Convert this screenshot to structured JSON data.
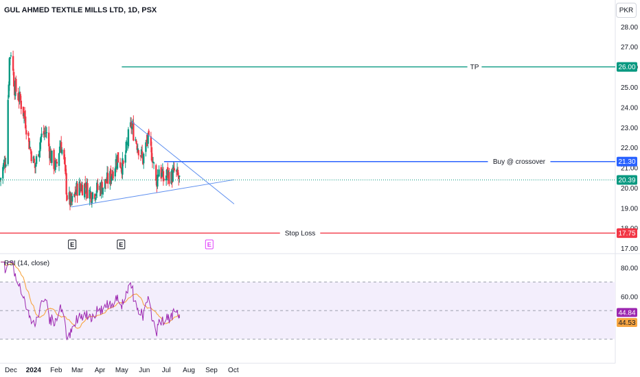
{
  "header": {
    "title": "GUL AHMED TEXTILE MILLS LTD, 1D, PSX",
    "currency": "PKR"
  },
  "colors": {
    "up": "#089981",
    "down": "#f23645",
    "tp_line": "#089981",
    "buy_line": "#2962ff",
    "stop_line": "#f23645",
    "trend_line": "#5b8def",
    "rsi": "#9c27b0",
    "rsi_ma": "#f7a541",
    "rsi_band": "#f3eefc",
    "earnings_future": "#e040fb",
    "last_price": "#089981"
  },
  "chart_data": {
    "type": "candlestick",
    "symbol": "GUL AHMED TEXTILE MILLS LTD",
    "interval": "1D",
    "exchange": "PSX",
    "currency": "PKR",
    "price_axis": {
      "ylim": [
        16.8,
        28.3
      ],
      "ticks": [
        "17.00",
        "18.00",
        "19.00",
        "20.00",
        "21.00",
        "22.00",
        "23.00",
        "24.00",
        "25.00",
        "26.00",
        "27.00",
        "28.00"
      ]
    },
    "time_axis": {
      "ticks": [
        "Dec",
        "2024",
        "Feb",
        "Mar",
        "Apr",
        "May",
        "Jun",
        "Jul",
        "Aug",
        "Sep",
        "Oct"
      ]
    },
    "price_path": [
      {
        "date": "2023-11-16",
        "close": 20.4
      },
      {
        "date": "2023-11-24",
        "close": 21.5
      },
      {
        "date": "2023-11-29",
        "close": 26.4
      },
      {
        "date": "2023-12-01",
        "close": 26.8
      },
      {
        "date": "2023-12-06",
        "close": 25.0
      },
      {
        "date": "2023-12-14",
        "close": 24.3
      },
      {
        "date": "2023-12-20",
        "close": 23.5
      },
      {
        "date": "2023-12-27",
        "close": 22.0
      },
      {
        "date": "2024-01-03",
        "close": 21.0
      },
      {
        "date": "2024-01-11",
        "close": 22.5
      },
      {
        "date": "2024-01-18",
        "close": 22.8
      },
      {
        "date": "2024-01-25",
        "close": 21.5
      },
      {
        "date": "2024-02-01",
        "close": 21.0
      },
      {
        "date": "2024-02-07",
        "close": 22.3
      },
      {
        "date": "2024-02-12",
        "close": 21.2
      },
      {
        "date": "2024-02-16",
        "close": 19.6
      },
      {
        "date": "2024-02-22",
        "close": 19.2
      },
      {
        "date": "2024-03-01",
        "close": 20.0
      },
      {
        "date": "2024-03-11",
        "close": 20.1
      },
      {
        "date": "2024-03-20",
        "close": 19.7
      },
      {
        "date": "2024-03-28",
        "close": 19.9
      },
      {
        "date": "2024-04-05",
        "close": 20.1
      },
      {
        "date": "2024-04-15",
        "close": 20.5
      },
      {
        "date": "2024-04-25",
        "close": 21.5
      },
      {
        "date": "2024-05-03",
        "close": 21.0
      },
      {
        "date": "2024-05-10",
        "close": 22.5
      },
      {
        "date": "2024-05-14",
        "close": 23.1
      },
      {
        "date": "2024-05-22",
        "close": 22.2
      },
      {
        "date": "2024-05-30",
        "close": 21.4
      },
      {
        "date": "2024-06-05",
        "close": 22.4
      },
      {
        "date": "2024-06-12",
        "close": 21.6
      },
      {
        "date": "2024-06-17",
        "close": 20.2
      },
      {
        "date": "2024-06-21",
        "close": 21.0
      },
      {
        "date": "2024-06-27",
        "close": 20.4
      },
      {
        "date": "2024-07-03",
        "close": 20.7
      },
      {
        "date": "2024-07-08",
        "close": 20.5
      },
      {
        "date": "2024-07-12",
        "close": 20.8
      },
      {
        "date": "2024-07-19",
        "close": 20.39
      }
    ],
    "last_price": 20.39,
    "levels": [
      {
        "name": "TP",
        "label": "TP",
        "price": 26.0,
        "badge": "26.00",
        "start": "2024-05-01"
      },
      {
        "name": "Buy",
        "label": "Buy @ crossover",
        "price": 21.3,
        "badge": "21.30",
        "start": "2024-06-28"
      },
      {
        "name": "Stop Loss",
        "label": "Stop Loss",
        "price": 17.75,
        "badge": "17.75",
        "start": "2023-11-16"
      }
    ],
    "last_price_badge": "20.39",
    "trendlines": [
      {
        "name": "upper",
        "from": {
          "date": "2024-05-14",
          "price": 23.3
        },
        "to": {
          "date": "2024-10-02",
          "price": 19.2
        }
      },
      {
        "name": "lower",
        "from": {
          "date": "2024-02-22",
          "price": 19.05
        },
        "to": {
          "date": "2024-10-02",
          "price": 20.4
        }
      }
    ],
    "earnings_markers": [
      {
        "label": "E",
        "date": "2024-02-23",
        "future": false
      },
      {
        "label": "E",
        "date": "2024-04-30",
        "future": false
      },
      {
        "label": "E",
        "date": "2024-08-29",
        "future": true
      }
    ],
    "rsi": {
      "title": "RSI (14, close)",
      "length": 14,
      "source": "close",
      "ylim": [
        16,
        87
      ],
      "ticks": [
        "60.00",
        "80.00"
      ],
      "band": [
        30,
        70
      ],
      "midline": 50,
      "value": 44.84,
      "value_badge": "44.84",
      "ma_value": 44.53,
      "ma_badge": "44.53"
    }
  }
}
